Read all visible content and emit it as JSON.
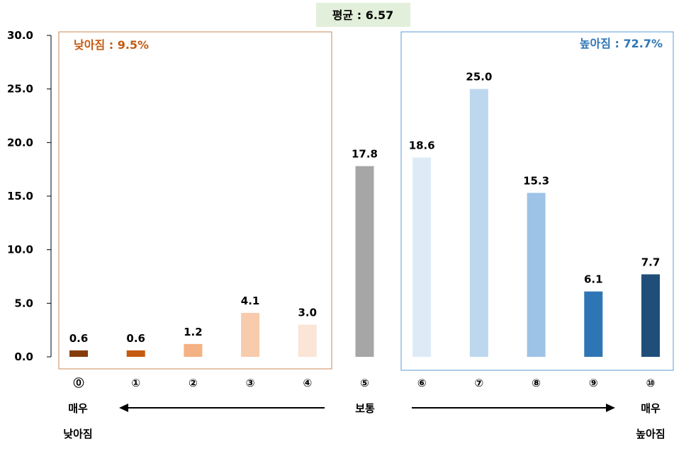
{
  "chart_data": {
    "type": "bar",
    "title": "",
    "xlabel": "",
    "ylabel": "",
    "ylim": [
      0,
      30
    ],
    "yticks": [
      "0.0",
      "5.0",
      "10.0",
      "15.0",
      "20.0",
      "25.0",
      "30.0"
    ],
    "categories": [
      "⓪",
      "①",
      "②",
      "③",
      "④",
      "⑤",
      "⑥",
      "⑦",
      "⑧",
      "⑨",
      "⑩"
    ],
    "values": [
      0.6,
      0.6,
      1.2,
      4.1,
      3.0,
      17.8,
      18.6,
      25.0,
      15.3,
      6.1,
      7.7
    ],
    "value_labels": [
      "0.6",
      "0.6",
      "1.2",
      "4.1",
      "3.0",
      "17.8",
      "18.6",
      "25.0",
      "15.3",
      "6.1",
      "7.7"
    ],
    "bar_colors": [
      "#843c0c",
      "#c55a11",
      "#f4b183",
      "#f8cbad",
      "#fbe5d6",
      "#a6a6a6",
      "#deebf7",
      "#bdd7ee",
      "#9dc3e6",
      "#2e75b6",
      "#1f4e79"
    ],
    "grid": false,
    "legend": "none"
  },
  "annotations": {
    "average": "평균 : 6.57",
    "lower": "낮아짐 : 9.5%",
    "higher": "높아짐 : 72.7%",
    "left_end_line1": "매우",
    "left_end_line2": "낮아짐",
    "middle": "보통",
    "right_end_line1": "매우",
    "right_end_line2": "높아짐"
  },
  "colors": {
    "lower_accent": "#c55a11",
    "higher_accent": "#2e75b6",
    "average_bg": "#e2efda"
  }
}
